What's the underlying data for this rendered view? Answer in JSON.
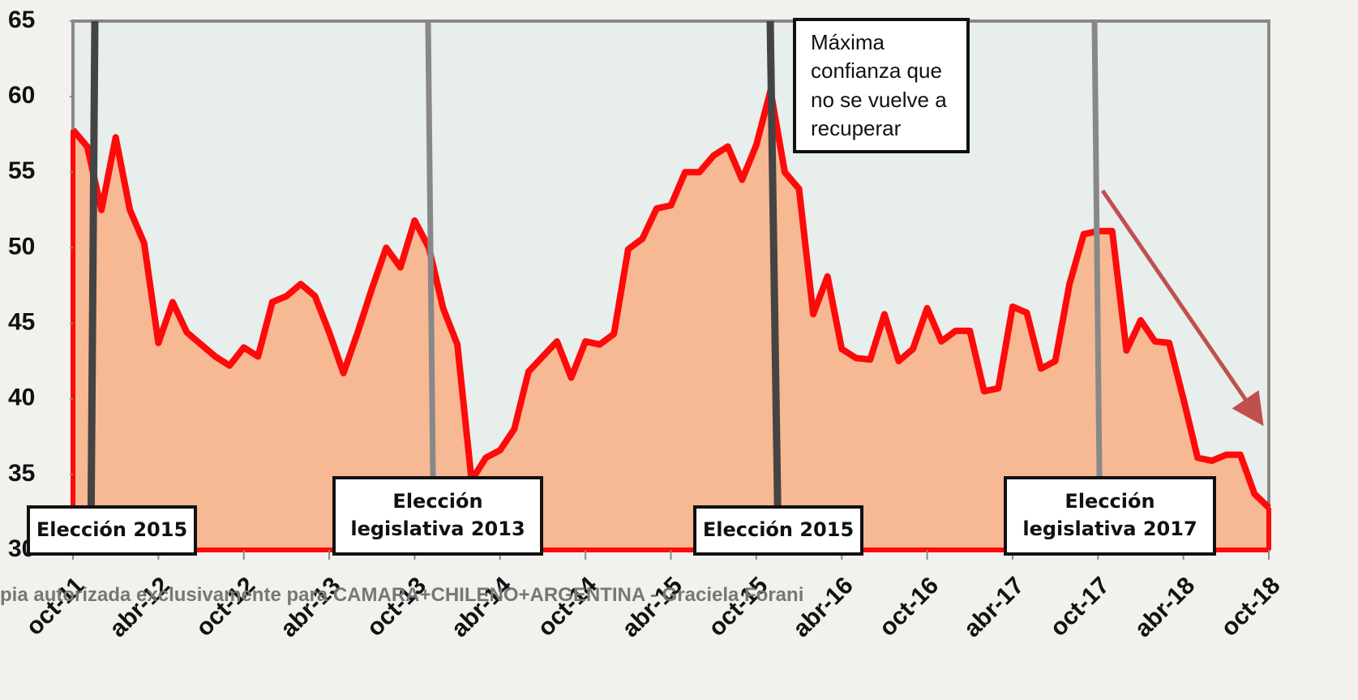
{
  "chart_data": {
    "type": "area",
    "categories": [
      "oct-11",
      null,
      null,
      null,
      null,
      null,
      "abr-12",
      null,
      null,
      null,
      null,
      null,
      "oct-12",
      null,
      null,
      null,
      null,
      null,
      "abr-13",
      null,
      null,
      null,
      null,
      null,
      "oct-13",
      null,
      null,
      null,
      null,
      null,
      "abr-14",
      null,
      null,
      null,
      null,
      null,
      "oct-14",
      null,
      null,
      null,
      null,
      null,
      "abr-15",
      null,
      null,
      null,
      null,
      null,
      "oct-15",
      null,
      null,
      null,
      null,
      null,
      "abr-16",
      null,
      null,
      null,
      null,
      null,
      "oct-16",
      null,
      null,
      null,
      null,
      null,
      "abr-17",
      null,
      null,
      null,
      null,
      null,
      "oct-17",
      null,
      null,
      null,
      null,
      null,
      "abr-18",
      null,
      null,
      null,
      null,
      null,
      "oct-18"
    ],
    "values": [
      57.8,
      56.7,
      52.5,
      57.3,
      52.5,
      50.3,
      43.7,
      46.4,
      44.4,
      43.6,
      42.8,
      42.2,
      43.4,
      42.8,
      46.4,
      46.8,
      47.6,
      46.8,
      44.4,
      41.7,
      44.4,
      47.3,
      50,
      48.7,
      51.8,
      50,
      46,
      43.6,
      34.6,
      36.1,
      36.6,
      38.0,
      41.8,
      42.8,
      43.8,
      41.4,
      43.8,
      43.6,
      44.3,
      49.9,
      50.6,
      52.6,
      52.8,
      55.0,
      55.0,
      56.1,
      56.7,
      54.5,
      56.8,
      60.4,
      55.0,
      53.9,
      45.6,
      48.1,
      43.3,
      42.7,
      42.6,
      45.6,
      42.5,
      43.3,
      46.0,
      43.8,
      44.5,
      44.5,
      40.5,
      40.7,
      46.1,
      45.7,
      42.0,
      42.5,
      47.6,
      50.9,
      51.1,
      51.1,
      43.2,
      45.2,
      43.8,
      43.7,
      40.0,
      36.1,
      35.9,
      36.3,
      36.3,
      33.7,
      32.8
    ],
    "color": "#ff0a0a",
    "fill_color": "#f7b894",
    "ylim": [
      30,
      65
    ],
    "yticks": [
      30,
      35,
      40,
      45,
      50,
      55,
      60,
      65
    ],
    "annotations": [
      "Elección 2015",
      "Elección legislativa 2013",
      "Elección 2015",
      "Elección legislativa 2017",
      "Máxima confianza que no se vuelve a recuperar"
    ],
    "watermark": "pia autorizada exclusivamente para CAMARA+CHILENO+ARGENTINA - Graciela Forani"
  }
}
